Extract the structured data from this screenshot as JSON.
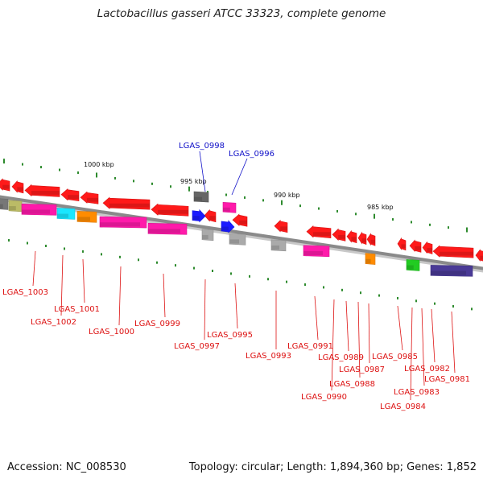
{
  "title": "Lactobacillus gasseri ATCC 33323, complete genome",
  "footer": {
    "accession": "Accession: NC_008530",
    "topology": "Topology: circular; Length: 1,894,360 bp; Genes: 1,852"
  },
  "colors": {
    "backbone": "#8a8a8a",
    "tick": "#2e8b2e",
    "label_forward": "#1010c8",
    "label_reverse": "#dd1111",
    "gene_red": "#ff1a1a",
    "gene_magenta": "#ff1aaa",
    "gene_grey": "#aaaaaa",
    "gene_blue": "#1a1aff"
  },
  "scale_labels": [
    {
      "text": "1000 kbp",
      "name": "scale-label-1000kbp"
    },
    {
      "text": "995 kbp",
      "name": "scale-label-995kbp"
    },
    {
      "text": "990 kbp",
      "name": "scale-label-990kbp"
    },
    {
      "text": "985 kbp",
      "name": "scale-label-985kbp"
    }
  ],
  "forward_genes": [
    {
      "label": "LGAS_0998",
      "color": "#2020ff"
    },
    {
      "label": "LGAS_0996",
      "color": "#2020ff"
    }
  ],
  "reverse_genes": [
    {
      "label": "LGAS_1003",
      "color": "#ff1a1a"
    },
    {
      "label": "LGAS_1002",
      "color": "#ff1aaa"
    },
    {
      "label": "LGAS_1001",
      "color": "#ff8c00"
    },
    {
      "label": "LGAS_1000",
      "color": "#ff1aaa"
    },
    {
      "label": "LGAS_0999",
      "color": "#ff1aaa"
    },
    {
      "label": "LGAS_0997",
      "color": "#aaaaaa"
    },
    {
      "label": "LGAS_0995",
      "color": "#aaaaaa"
    },
    {
      "label": "LGAS_0993",
      "color": "#aaaaaa"
    },
    {
      "label": "LGAS_0991",
      "color": "#ff1aaa"
    },
    {
      "label": "LGAS_0990",
      "color": "#ff1a1a"
    },
    {
      "label": "LGAS_0989",
      "color": "#ff1a1a"
    },
    {
      "label": "LGAS_0988",
      "color": "#ff1a1a"
    },
    {
      "label": "LGAS_0987",
      "color": "#ff8c00"
    },
    {
      "label": "LGAS_0985",
      "color": "#ff1a1a"
    },
    {
      "label": "LGAS_0984",
      "color": "#ff1a1a"
    },
    {
      "label": "LGAS_0983",
      "color": "#22cc22"
    },
    {
      "label": "LGAS_0982",
      "color": "#ff1a1a"
    },
    {
      "label": "LGAS_0981",
      "color": "#ff1a1a"
    }
  ]
}
